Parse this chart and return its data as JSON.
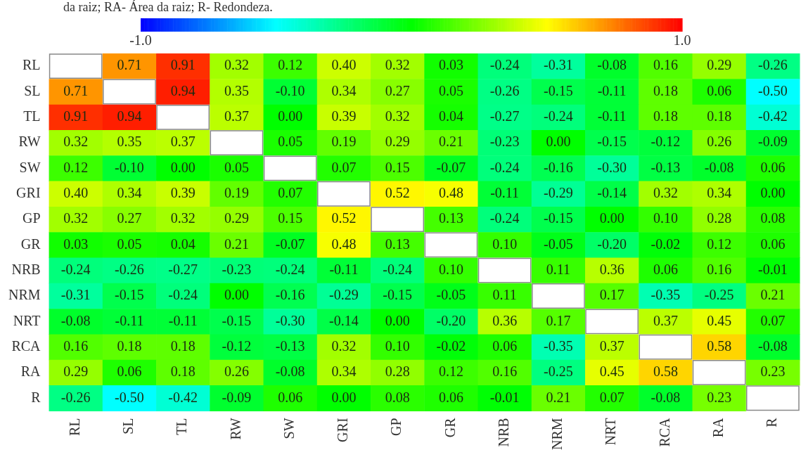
{
  "chart_data": {
    "type": "heatmap",
    "annotations": [
      "da raiz; RA- Área da raiz; R- Redondeza."
    ],
    "categories": [
      "RL",
      "SL",
      "TL",
      "RW",
      "SW",
      "GRI",
      "GP",
      "GR",
      "NRB",
      "NRM",
      "NRT",
      "RCA",
      "RA",
      "R"
    ],
    "y_categories": [
      "RL",
      "SL",
      "TL",
      "RW",
      "SW",
      "GRI",
      "GP",
      "GR",
      "NRB",
      "NRM",
      "NRT",
      "RCA",
      "RA",
      "R"
    ],
    "clim": [
      -1,
      1
    ],
    "cticks": [
      {
        "value": -1,
        "label": "-1.0"
      },
      {
        "value": 1,
        "label": "1.0"
      }
    ],
    "cells": [
      [
        null,
        0.71,
        0.91,
        0.32,
        0.12,
        0.4,
        0.32,
        0.03,
        -0.24,
        -0.31,
        -0.08,
        0.16,
        0.29,
        -0.26
      ],
      [
        0.71,
        null,
        0.94,
        0.35,
        -0.1,
        0.34,
        0.27,
        0.05,
        -0.26,
        -0.15,
        -0.11,
        0.18,
        0.06,
        -0.5
      ],
      [
        0.91,
        0.94,
        null,
        0.37,
        0.0,
        0.39,
        0.32,
        0.04,
        -0.27,
        -0.24,
        -0.11,
        0.18,
        0.18,
        -0.42
      ],
      [
        0.32,
        0.35,
        0.37,
        null,
        0.05,
        0.19,
        0.29,
        0.21,
        -0.23,
        0.0,
        -0.15,
        -0.12,
        0.26,
        -0.09
      ],
      [
        0.12,
        -0.1,
        0.0,
        0.05,
        null,
        0.07,
        0.15,
        -0.07,
        -0.24,
        -0.16,
        -0.3,
        -0.13,
        -0.08,
        0.06
      ],
      [
        0.4,
        0.34,
        0.39,
        0.19,
        0.07,
        null,
        0.52,
        0.48,
        -0.11,
        -0.29,
        -0.14,
        0.32,
        0.34,
        0.0
      ],
      [
        0.32,
        0.27,
        0.32,
        0.29,
        0.15,
        0.52,
        null,
        0.13,
        -0.24,
        -0.15,
        0.0,
        0.1,
        0.28,
        0.08
      ],
      [
        0.03,
        0.05,
        0.04,
        0.21,
        -0.07,
        0.48,
        0.13,
        null,
        0.1,
        -0.05,
        -0.2,
        -0.02,
        0.12,
        0.06
      ],
      [
        -0.24,
        -0.26,
        -0.27,
        -0.23,
        -0.24,
        -0.11,
        -0.24,
        0.1,
        null,
        0.11,
        0.36,
        0.06,
        0.16,
        -0.01
      ],
      [
        -0.31,
        -0.15,
        -0.24,
        0.0,
        -0.16,
        -0.29,
        -0.15,
        -0.05,
        0.11,
        null,
        0.17,
        -0.35,
        -0.25,
        0.21
      ],
      [
        -0.08,
        -0.11,
        -0.11,
        -0.15,
        -0.3,
        -0.14,
        0.0,
        -0.2,
        0.36,
        0.17,
        null,
        0.37,
        0.45,
        0.07
      ],
      [
        0.16,
        0.18,
        0.18,
        -0.12,
        -0.13,
        0.32,
        0.1,
        -0.02,
        0.06,
        -0.35,
        0.37,
        null,
        0.58,
        -0.08
      ],
      [
        0.29,
        0.06,
        0.18,
        0.26,
        -0.08,
        0.34,
        0.28,
        0.12,
        0.16,
        -0.25,
        0.45,
        0.58,
        null,
        0.23
      ],
      [
        -0.26,
        -0.5,
        -0.42,
        -0.09,
        0.06,
        0.0,
        0.08,
        0.06,
        -0.01,
        0.21,
        0.07,
        -0.08,
        0.23,
        null
      ]
    ],
    "cell_labels": [
      [
        null,
        "0.71",
        "0.91",
        "0.32",
        "0.12",
        "0.40",
        "0.32",
        "0.03",
        "-0.24",
        "-0.31",
        "-0.08",
        "0.16",
        "0.29",
        "-0.26"
      ],
      [
        "0.71",
        null,
        "0.94",
        "0.35",
        "-0.10",
        "0.34",
        "0.27",
        "0.05",
        "-0.26",
        "-0.15",
        "-0.11",
        "0.18",
        "0.06",
        "-0.50"
      ],
      [
        "0.91",
        "0.94",
        null,
        "0.37",
        "0.00",
        "0.39",
        "0.32",
        "0.04",
        "-0.27",
        "-0.24",
        "-0.11",
        "0.18",
        "0.18",
        "-0.42"
      ],
      [
        "0.32",
        "0.35",
        "0.37",
        null,
        "0.05",
        "0.19",
        "0.29",
        "0.21",
        "-0.23",
        "0.00",
        "-0.15",
        "-0.12",
        "0.26",
        "-0.09"
      ],
      [
        "0.12",
        "-0.10",
        "0.00",
        "0.05",
        null,
        "0.07",
        "0.15",
        "-0.07",
        "-0.24",
        "-0.16",
        "-0.30",
        "-0.13",
        "-0.08",
        "0.06"
      ],
      [
        "0.40",
        "0.34",
        "0.39",
        "0.19",
        "0.07",
        null,
        "0.52",
        "0.48",
        "-0.11",
        "-0.29",
        "-0.14",
        "0.32",
        "0.34",
        "0.00"
      ],
      [
        "0.32",
        "0.27",
        "0.32",
        "0.29",
        "0.15",
        "0.52",
        null,
        "0.13",
        "-0.24",
        "-0.15",
        "0.00",
        "0.10",
        "0.28",
        "0.08"
      ],
      [
        "0.03",
        "0.05",
        "0.04",
        "0.21",
        "-0.07",
        "0.48",
        "0.13",
        null,
        "0.10",
        "-0.05",
        "-0.20",
        "-0.02",
        "0.12",
        "0.06"
      ],
      [
        "-0.24",
        "-0.26",
        "-0.27",
        "-0.23",
        "-0.24",
        "-0.11",
        "-0.24",
        "0.10",
        null,
        "0.11",
        "0.36",
        "0.06",
        "0.16",
        "-0.01"
      ],
      [
        "-0.31",
        "-0.15",
        "-0.24",
        "0.00",
        "-0.16",
        "-0.29",
        "-0.15",
        "-0.05",
        "0.11",
        null,
        "0.17",
        "-0.35",
        "-0.25",
        "0.21"
      ],
      [
        "-0.08",
        "-0.11",
        "-0.11",
        "-0.15",
        "-0.30",
        "-0.14",
        "0.00",
        "-0.20",
        "0.36",
        "0.17",
        null,
        "0.37",
        "0.45",
        "0.07"
      ],
      [
        "0.16",
        "0.18",
        "0.18",
        "-0.12",
        "-0.13",
        "0.32",
        "0.10",
        "-0.02",
        "0.06",
        "-0.35",
        "0.37",
        null,
        "0.58",
        "-0.08"
      ],
      [
        "0.29",
        "0.06",
        "0.18",
        "0.26",
        "-0.08",
        "0.34",
        "0.28",
        "0.12",
        "0.16",
        "-0.25",
        "0.45",
        "0.58",
        null,
        "0.23"
      ],
      [
        "-0.26",
        "-0.50",
        "-0.42",
        "-0.09",
        "0.06",
        "0.00",
        "0.08",
        "0.06",
        "-0.01",
        "0.21",
        "0.07",
        "-0.08",
        "0.23",
        null
      ]
    ]
  }
}
